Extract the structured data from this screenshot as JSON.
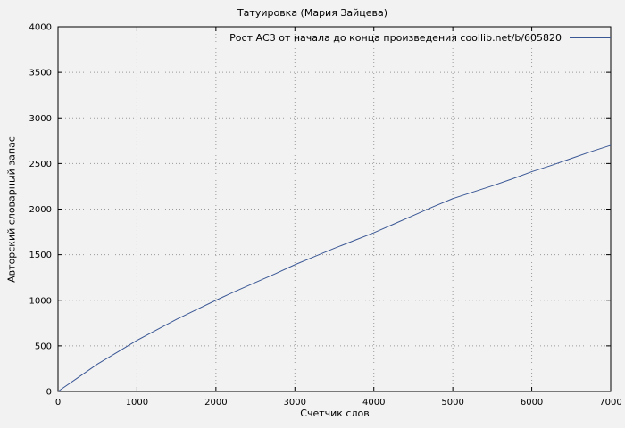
{
  "chart_data": {
    "type": "line",
    "title": "Татуировка (Мария Зайцева)",
    "xlabel": "Счетчик слов",
    "ylabel": "Авторский словарный запас",
    "xlim": [
      0,
      7000
    ],
    "ylim": [
      0,
      4000
    ],
    "xticks": [
      0,
      1000,
      2000,
      3000,
      4000,
      5000,
      6000,
      7000
    ],
    "yticks": [
      0,
      500,
      1000,
      1500,
      2000,
      2500,
      3000,
      3500,
      4000
    ],
    "grid": true,
    "grid_color": "#9a9a9a",
    "background_color": "#f2f2f2",
    "legend_position": "top-right",
    "series": [
      {
        "name": "Рост АСЗ от начала до конца произведения coollib.net/b/605820",
        "color": "#3a5795",
        "points": [
          [
            0,
            0
          ],
          [
            250,
            150
          ],
          [
            500,
            300
          ],
          [
            750,
            430
          ],
          [
            1000,
            560
          ],
          [
            1250,
            675
          ],
          [
            1500,
            790
          ],
          [
            1750,
            895
          ],
          [
            2000,
            1000
          ],
          [
            2250,
            1100
          ],
          [
            2500,
            1195
          ],
          [
            2750,
            1290
          ],
          [
            3000,
            1390
          ],
          [
            3250,
            1480
          ],
          [
            3500,
            1570
          ],
          [
            3750,
            1655
          ],
          [
            4000,
            1740
          ],
          [
            4250,
            1835
          ],
          [
            4500,
            1930
          ],
          [
            4750,
            2025
          ],
          [
            5000,
            2115
          ],
          [
            5250,
            2185
          ],
          [
            5500,
            2255
          ],
          [
            5750,
            2330
          ],
          [
            6000,
            2410
          ],
          [
            6250,
            2480
          ],
          [
            6500,
            2555
          ],
          [
            6750,
            2630
          ],
          [
            7000,
            2700
          ]
        ]
      }
    ]
  }
}
